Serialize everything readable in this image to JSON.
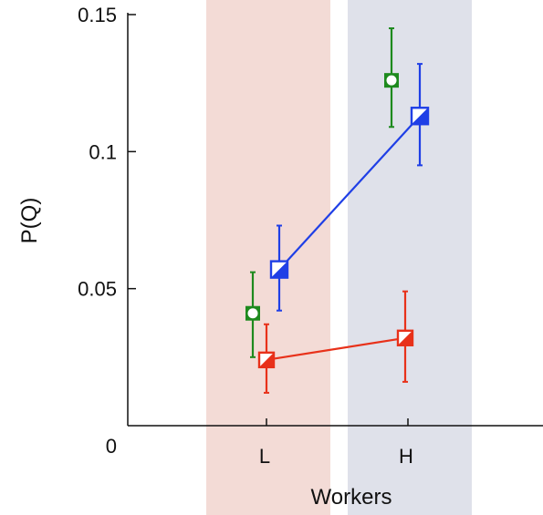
{
  "chart_data": {
    "type": "scatter",
    "xlabel": "Workers",
    "ylabel": "P(Q)",
    "categories": [
      "L",
      "H"
    ],
    "y_ticks": [
      "0",
      "0.05",
      "0.1",
      "0.15"
    ],
    "ylim": [
      0,
      0.15
    ],
    "grid": false,
    "legend": "none",
    "background_bands": [
      {
        "category": "L",
        "color": "#f3dbd6"
      },
      {
        "category": "H",
        "color": "#dfe1ea"
      }
    ],
    "series": [
      {
        "color": "#1e8a1e",
        "marker": "square-with-circle",
        "connected": false,
        "values": [
          0.041,
          0.126
        ],
        "errors": [
          [
            0.025,
            0.056
          ],
          [
            0.109,
            0.145
          ]
        ]
      },
      {
        "color": "#1f3fe6",
        "marker": "half-filled-square",
        "connected": true,
        "values": [
          0.057,
          0.113
        ],
        "errors": [
          [
            0.042,
            0.073
          ],
          [
            0.095,
            0.132
          ]
        ]
      },
      {
        "color": "#e8311a",
        "marker": "half-filled-square",
        "connected": true,
        "values": [
          0.024,
          0.032
        ],
        "errors": [
          [
            0.012,
            0.037
          ],
          [
            0.016,
            0.049
          ]
        ]
      }
    ]
  }
}
